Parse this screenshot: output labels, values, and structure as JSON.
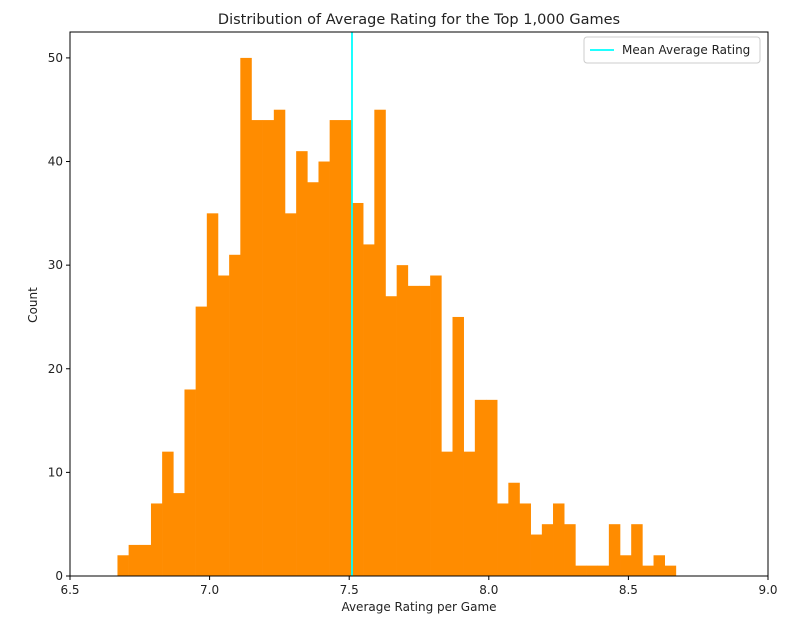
{
  "chart_data": {
    "type": "bar",
    "title": "Distribution of Average Rating for the Top 1,000 Games",
    "xlabel": "Average Rating per Game",
    "ylabel": "Count",
    "xlim": [
      6.5,
      9.0
    ],
    "ylim": [
      0,
      52.5
    ],
    "xticks": [
      6.5,
      7.0,
      7.5,
      8.0,
      8.5,
      9.0
    ],
    "xtick_labels": [
      "6.5",
      "7.0",
      "7.5",
      "8.0",
      "8.5",
      "9.0"
    ],
    "yticks": [
      0,
      10,
      20,
      30,
      40,
      50
    ],
    "ytick_labels": [
      "0",
      "10",
      "20",
      "30",
      "40",
      "50"
    ],
    "grid": false,
    "bin_start": 6.67,
    "bin_width": 0.04,
    "counts": [
      2,
      3,
      3,
      7,
      12,
      8,
      18,
      26,
      35,
      29,
      31,
      50,
      44,
      44,
      45,
      35,
      41,
      38,
      40,
      44,
      44,
      36,
      32,
      45,
      27,
      30,
      28,
      28,
      29,
      12,
      25,
      12,
      17,
      17,
      7,
      9,
      7,
      4,
      5,
      7,
      5,
      1,
      1,
      1,
      5,
      2,
      5,
      1,
      2,
      1
    ],
    "bar_color": "#ff8c00",
    "mean_line": {
      "x": 7.51,
      "color": "#00ffff",
      "label": "Mean Average Rating"
    },
    "legend": {
      "placement": "top-right",
      "entries": [
        "Mean Average Rating"
      ]
    }
  }
}
